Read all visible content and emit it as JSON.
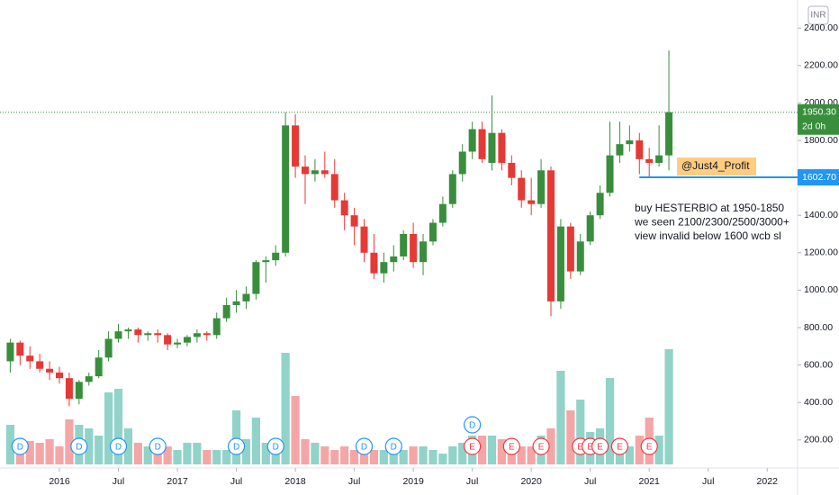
{
  "chart_data": {
    "type": "candlestick",
    "currency": "INR",
    "x": [
      "2015-08",
      "2015-09",
      "2015-10",
      "2015-11",
      "2015-12",
      "2016-01",
      "2016-02",
      "2016-03",
      "2016-04",
      "2016-05",
      "2016-06",
      "2016-07",
      "2016-08",
      "2016-09",
      "2016-10",
      "2016-11",
      "2016-12",
      "2017-01",
      "2017-02",
      "2017-03",
      "2017-04",
      "2017-05",
      "2017-06",
      "2017-07",
      "2017-08",
      "2017-09",
      "2017-10",
      "2017-11",
      "2017-12",
      "2018-01",
      "2018-02",
      "2018-03",
      "2018-04",
      "2018-05",
      "2018-06",
      "2018-07",
      "2018-08",
      "2018-09",
      "2018-10",
      "2018-11",
      "2018-12",
      "2019-01",
      "2019-02",
      "2019-03",
      "2019-04",
      "2019-05",
      "2019-06",
      "2019-07",
      "2019-08",
      "2019-09",
      "2019-10",
      "2019-11",
      "2019-12",
      "2020-01",
      "2020-02",
      "2020-03",
      "2020-04",
      "2020-05",
      "2020-06",
      "2020-07",
      "2020-08",
      "2020-09",
      "2020-10",
      "2020-11",
      "2020-12",
      "2021-01",
      "2021-02",
      "2021-03"
    ],
    "open": [
      620,
      720,
      650,
      620,
      580,
      560,
      530,
      420,
      510,
      540,
      640,
      740,
      780,
      790,
      760,
      770,
      760,
      710,
      720,
      750,
      770,
      760,
      850,
      920,
      940,
      980,
      1150,
      1160,
      1200,
      1880,
      1660,
      1620,
      1640,
      1620,
      1480,
      1400,
      1340,
      1200,
      1090,
      1150,
      1180,
      1300,
      1150,
      1260,
      1360,
      1460,
      1620,
      1740,
      1860,
      1680,
      1840,
      1680,
      1600,
      1480,
      1460,
      1640,
      940,
      1340,
      1100,
      1260,
      1400,
      1520,
      1720,
      1780,
      1800,
      1700,
      1680,
      1720
    ],
    "high": [
      740,
      730,
      700,
      660,
      620,
      590,
      560,
      520,
      560,
      680,
      780,
      820,
      800,
      800,
      780,
      790,
      770,
      740,
      760,
      790,
      780,
      880,
      960,
      1000,
      1020,
      1160,
      1180,
      1240,
      1950,
      1940,
      1720,
      1700,
      1740,
      1700,
      1520,
      1440,
      1380,
      1300,
      1200,
      1240,
      1320,
      1360,
      1300,
      1380,
      1500,
      1640,
      1780,
      1900,
      1900,
      2040,
      1860,
      1720,
      1640,
      1600,
      1700,
      1660,
      1380,
      1360,
      1300,
      1420,
      1560,
      1900,
      1900,
      1880,
      1840,
      1760,
      1880,
      2280
    ],
    "low": [
      560,
      600,
      580,
      560,
      520,
      500,
      380,
      390,
      490,
      530,
      620,
      720,
      740,
      720,
      730,
      720,
      680,
      690,
      700,
      720,
      730,
      740,
      830,
      880,
      900,
      950,
      1040,
      1130,
      1180,
      1600,
      1460,
      1580,
      1600,
      1440,
      1320,
      1240,
      1150,
      1060,
      1040,
      1100,
      1160,
      1120,
      1080,
      1240,
      1340,
      1440,
      1580,
      1700,
      1680,
      1640,
      1640,
      1560,
      1440,
      1400,
      1440,
      860,
      900,
      1060,
      1080,
      1240,
      1380,
      1500,
      1680,
      1740,
      1620,
      1600,
      1660,
      1640
    ],
    "close": [
      720,
      650,
      620,
      580,
      560,
      530,
      420,
      510,
      540,
      640,
      740,
      780,
      790,
      760,
      770,
      760,
      710,
      720,
      750,
      770,
      760,
      850,
      920,
      940,
      980,
      1150,
      1160,
      1200,
      1880,
      1660,
      1620,
      1640,
      1620,
      1480,
      1400,
      1340,
      1200,
      1090,
      1150,
      1180,
      1300,
      1150,
      1260,
      1360,
      1460,
      1620,
      1740,
      1860,
      1700,
      1840,
      1680,
      1600,
      1480,
      1460,
      1640,
      940,
      1340,
      1100,
      1260,
      1400,
      1520,
      1720,
      1780,
      1800,
      1700,
      1680,
      1720,
      1950.3
    ],
    "volume": [
      22,
      12,
      13,
      12,
      14,
      10,
      25,
      22,
      20,
      16,
      40,
      42,
      20,
      12,
      10,
      8,
      10,
      8,
      12,
      12,
      8,
      8,
      8,
      30,
      14,
      26,
      12,
      12,
      62,
      38,
      14,
      12,
      10,
      8,
      10,
      8,
      9,
      8,
      8,
      10,
      8,
      10,
      10,
      8,
      6,
      10,
      12,
      16,
      16,
      16,
      14,
      8,
      10,
      10,
      16,
      20,
      52,
      30,
      36,
      18,
      20,
      48,
      14,
      10,
      16,
      26,
      16,
      64
    ],
    "up_color": "#388e3c",
    "down_color": "#e53935",
    "vol_up_color": "#91d3c9",
    "vol_down_color": "#f4a6a6",
    "vlim": [
      0,
      100
    ],
    "ylim": [
      50,
      2550
    ],
    "yticks": [
      {
        "value": 200,
        "label": "200.00"
      },
      {
        "value": 400,
        "label": "400.00"
      },
      {
        "value": 600,
        "label": "600.00"
      },
      {
        "value": 800,
        "label": "800.00"
      },
      {
        "value": 1000,
        "label": "1000.00"
      },
      {
        "value": 1200,
        "label": "1200.00"
      },
      {
        "value": 1400,
        "label": "1400.00"
      },
      {
        "value": 1600,
        "label": "1600.00"
      },
      {
        "value": 1800,
        "label": "1800.00"
      },
      {
        "value": 2000,
        "label": "2000.00"
      },
      {
        "value": 2200,
        "label": "2200.00"
      },
      {
        "value": 2400,
        "label": "2400.00"
      }
    ],
    "xticks": [
      {
        "value": "2016-01",
        "label": "2016"
      },
      {
        "value": "2016-07",
        "label": "Jul"
      },
      {
        "value": "2017-01",
        "label": "2017"
      },
      {
        "value": "2017-07",
        "label": "Jul"
      },
      {
        "value": "2018-01",
        "label": "2018"
      },
      {
        "value": "2018-07",
        "label": "Jul"
      },
      {
        "value": "2019-01",
        "label": "2019"
      },
      {
        "value": "2019-07",
        "label": "Jul"
      },
      {
        "value": "2020-01",
        "label": "2020"
      },
      {
        "value": "2020-07",
        "label": "Jul"
      },
      {
        "value": "2021-01",
        "label": "2021"
      },
      {
        "value": "2021-07",
        "label": "Jul"
      },
      {
        "value": "2022-01",
        "label": "2022"
      }
    ],
    "last_price": {
      "value": 1950.3,
      "label": "1950.30",
      "countdown": "2d 0h"
    },
    "level": {
      "value": 1602.7,
      "label": "1602.70",
      "from": "2020-12"
    },
    "author": "@Just4_Profit",
    "annotation": [
      "buy HESTERBIO at 1950-1850",
      "we seen 2100/2300/2500/3000+",
      "view invalid below 1600 wcb sl"
    ],
    "events": [
      {
        "x": "2015-09",
        "label": "D"
      },
      {
        "x": "2016-03",
        "label": "D"
      },
      {
        "x": "2016-07",
        "label": "D"
      },
      {
        "x": "2016-11",
        "label": "D"
      },
      {
        "x": "2017-07",
        "label": "D"
      },
      {
        "x": "2017-11",
        "label": "D"
      },
      {
        "x": "2018-08",
        "label": "D"
      },
      {
        "x": "2018-11",
        "label": "D"
      },
      {
        "x": "2019-07",
        "label": "E"
      },
      {
        "x": "2019-07",
        "label": "D"
      },
      {
        "x": "2019-11",
        "label": "E"
      },
      {
        "x": "2020-02",
        "label": "E"
      },
      {
        "x": "2020-06",
        "label": "E"
      },
      {
        "x": "2020-07",
        "label": "E"
      },
      {
        "x": "2020-08",
        "label": "E"
      },
      {
        "x": "2020-10",
        "label": "E"
      },
      {
        "x": "2021-01",
        "label": "E"
      }
    ]
  }
}
